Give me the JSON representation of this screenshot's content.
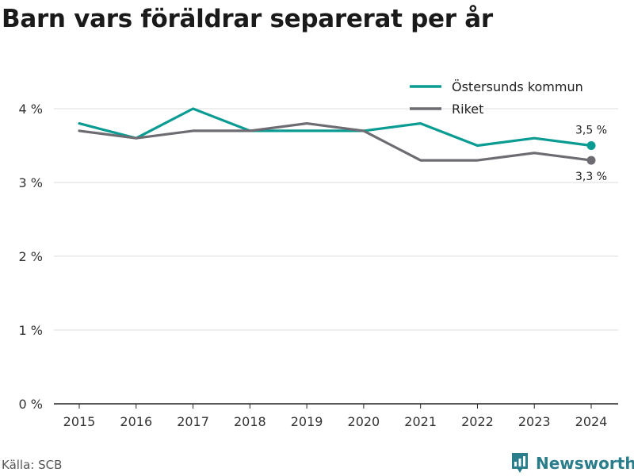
{
  "colors": {
    "ostersund": "#0a9c93",
    "riket": "#6e6c72",
    "grid": "#dddddd",
    "brand": "#2a7d8a"
  },
  "source": "Källa: SCB",
  "brand": {
    "name": "Newsworthy",
    "icon": "bar-chart-logo-icon"
  },
  "chart_data": {
    "type": "line",
    "title": "Barn vars föräldrar separerat per år",
    "x": [
      "2015",
      "2016",
      "2017",
      "2018",
      "2019",
      "2020",
      "2021",
      "2022",
      "2023",
      "2024"
    ],
    "ylim": [
      0,
      4.5
    ],
    "yticks": [
      {
        "value": 0,
        "label": "0 %"
      },
      {
        "value": 1,
        "label": "1 %"
      },
      {
        "value": 2,
        "label": "2 %"
      },
      {
        "value": 3,
        "label": "3 %"
      },
      {
        "value": 4,
        "label": "4 %"
      }
    ],
    "grid": true,
    "legend": "top-right",
    "series": [
      {
        "name": "Östersunds kommun",
        "color": "#0a9c93",
        "values": [
          3.8,
          3.6,
          4.0,
          3.7,
          3.7,
          3.7,
          3.8,
          3.5,
          3.6,
          3.5
        ],
        "end_label": "3,5 %"
      },
      {
        "name": "Riket",
        "color": "#6e6c72",
        "values": [
          3.7,
          3.6,
          3.7,
          3.7,
          3.8,
          3.7,
          3.3,
          3.3,
          3.4,
          3.3
        ],
        "end_label": "3,3 %"
      }
    ]
  }
}
